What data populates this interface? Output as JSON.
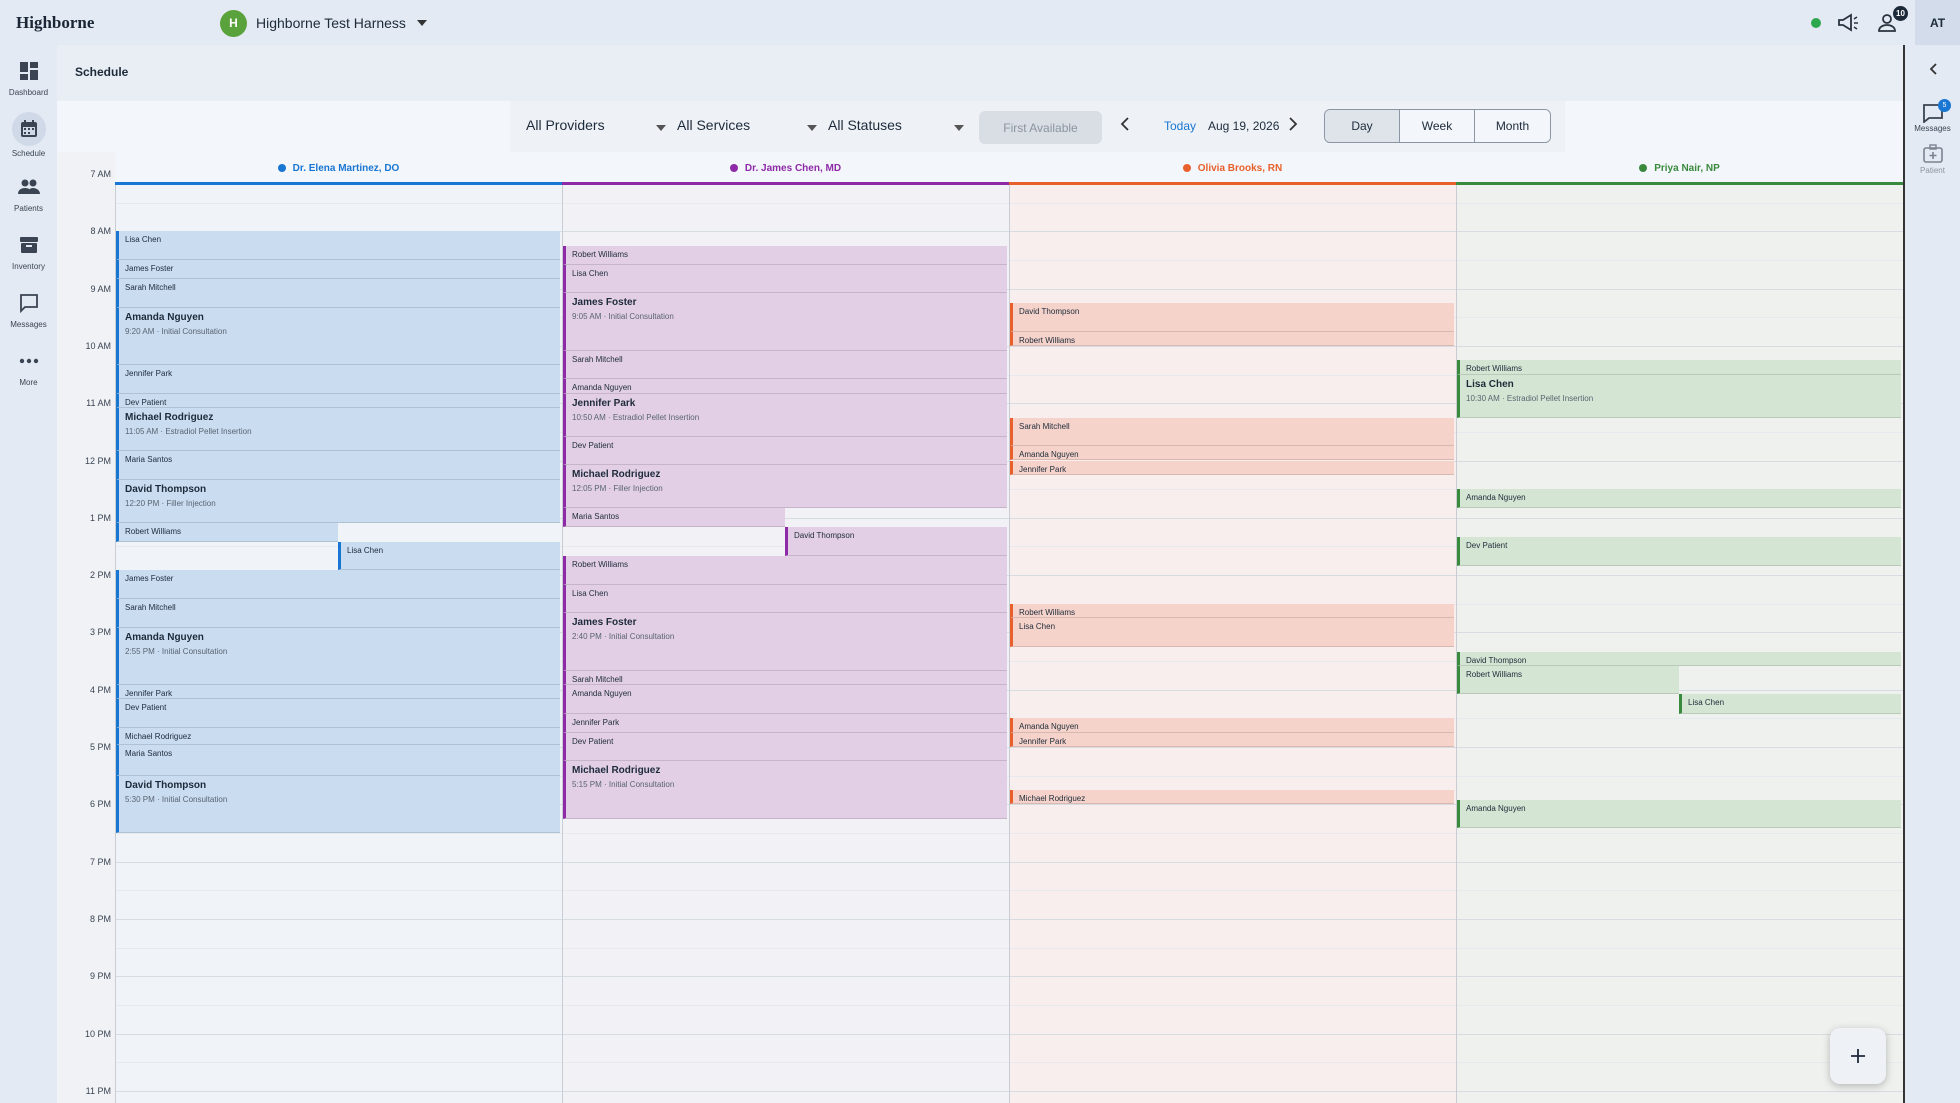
{
  "app": {
    "logo": "Highborne"
  },
  "org": {
    "initial": "H",
    "name": "Highborne Test Harness"
  },
  "topbar": {
    "notification_count": "10",
    "user_initials": "AT"
  },
  "nav": [
    {
      "label": "Dashboard",
      "icon": "dashboard-icon"
    },
    {
      "label": "Schedule",
      "icon": "calendar-icon"
    },
    {
      "label": "Patients",
      "icon": "people-icon"
    },
    {
      "label": "Inventory",
      "icon": "archive-icon"
    },
    {
      "label": "Messages",
      "icon": "chat-icon"
    },
    {
      "label": "More",
      "icon": "more-icon"
    }
  ],
  "rightpanel": {
    "messages_label": "Messages",
    "messages_count": "5",
    "patient_label": "Patient"
  },
  "page": {
    "title": "Schedule"
  },
  "filters": {
    "providers": "All Providers",
    "services": "All Services",
    "statuses": "All Statuses",
    "first_available": "First Available",
    "today": "Today",
    "date": "Aug 19, 2026",
    "views": [
      "Day",
      "Week",
      "Month"
    ],
    "active_view": "Day"
  },
  "hours": [
    "7 AM",
    "8 AM",
    "9 AM",
    "10 AM",
    "11 AM",
    "12 PM",
    "1 PM",
    "2 PM",
    "3 PM",
    "4 PM",
    "5 PM",
    "6 PM",
    "7 PM",
    "8 PM",
    "9 PM",
    "10 PM",
    "11 PM"
  ],
  "providers": [
    {
      "name": "Dr. Elena Martinez, DO",
      "color": "#1976d2",
      "fill": "#c9dcf0",
      "bg": "#f0f3f8",
      "appointments": [
        {
          "start": "8:00",
          "end": "8:30",
          "patient": "Lisa Chen"
        },
        {
          "start": "8:30",
          "end": "8:50",
          "patient": "James Foster"
        },
        {
          "start": "8:50",
          "end": "9:20",
          "patient": "Sarah Mitchell"
        },
        {
          "start": "9:20",
          "end": "10:20",
          "patient": "Amanda Nguyen",
          "detail": "9:20 AM · Initial Consultation"
        },
        {
          "start": "10:20",
          "end": "10:50",
          "patient": "Jennifer Park"
        },
        {
          "start": "10:50",
          "end": "11:05",
          "patient": "Dev Patient"
        },
        {
          "start": "11:05",
          "end": "11:50",
          "patient": "Michael Rodriguez",
          "detail": "11:05 AM · Estradiol Pellet Insertion"
        },
        {
          "start": "11:50",
          "end": "12:20",
          "patient": "Maria Santos"
        },
        {
          "start": "12:20",
          "end": "13:05",
          "patient": "David Thompson",
          "detail": "12:20 PM · Filler Injection"
        },
        {
          "start": "13:05",
          "end": "13:25",
          "patient": "Robert Williams",
          "half": "left"
        },
        {
          "start": "13:25",
          "end": "13:55",
          "patient": "Lisa Chen",
          "half": "right"
        },
        {
          "start": "13:55",
          "end": "14:25",
          "patient": "James Foster"
        },
        {
          "start": "14:25",
          "end": "14:55",
          "patient": "Sarah Mitchell"
        },
        {
          "start": "14:55",
          "end": "15:55",
          "patient": "Amanda Nguyen",
          "detail": "2:55 PM · Initial Consultation"
        },
        {
          "start": "15:55",
          "end": "16:10",
          "patient": "Jennifer Park"
        },
        {
          "start": "16:10",
          "end": "16:40",
          "patient": "Dev Patient"
        },
        {
          "start": "16:40",
          "end": "16:58",
          "patient": "Michael Rodriguez"
        },
        {
          "start": "16:58",
          "end": "17:30",
          "patient": "Maria Santos"
        },
        {
          "start": "17:30",
          "end": "18:30",
          "patient": "David Thompson",
          "detail": "5:30 PM · Initial Consultation"
        }
      ]
    },
    {
      "name": "Dr. James Chen, MD",
      "color": "#8e2aa8",
      "fill": "#e2cfe5",
      "bg": "#f2f1f6",
      "appointments": [
        {
          "start": "8:15",
          "end": "8:35",
          "patient": "Robert Williams"
        },
        {
          "start": "8:35",
          "end": "9:05",
          "patient": "Lisa Chen"
        },
        {
          "start": "9:05",
          "end": "10:05",
          "patient": "James Foster",
          "detail": "9:05 AM · Initial Consultation"
        },
        {
          "start": "10:05",
          "end": "10:35",
          "patient": "Sarah Mitchell"
        },
        {
          "start": "10:35",
          "end": "10:50",
          "patient": "Amanda Nguyen"
        },
        {
          "start": "10:50",
          "end": "11:35",
          "patient": "Jennifer Park",
          "detail": "10:50 AM · Estradiol Pellet Insertion"
        },
        {
          "start": "11:35",
          "end": "12:05",
          "patient": "Dev Patient"
        },
        {
          "start": "12:05",
          "end": "12:50",
          "patient": "Michael Rodriguez",
          "detail": "12:05 PM · Filler Injection"
        },
        {
          "start": "12:50",
          "end": "13:10",
          "patient": "Maria Santos",
          "half": "left"
        },
        {
          "start": "13:10",
          "end": "13:40",
          "patient": "David Thompson",
          "half": "right"
        },
        {
          "start": "13:40",
          "end": "14:10",
          "patient": "Robert Williams"
        },
        {
          "start": "14:10",
          "end": "14:40",
          "patient": "Lisa Chen"
        },
        {
          "start": "14:40",
          "end": "15:40",
          "patient": "James Foster",
          "detail": "2:40 PM · Initial Consultation"
        },
        {
          "start": "15:40",
          "end": "15:55",
          "patient": "Sarah Mitchell"
        },
        {
          "start": "15:55",
          "end": "16:25",
          "patient": "Amanda Nguyen"
        },
        {
          "start": "16:25",
          "end": "16:45",
          "patient": "Jennifer Park"
        },
        {
          "start": "16:45",
          "end": "17:15",
          "patient": "Dev Patient"
        },
        {
          "start": "17:15",
          "end": "18:15",
          "patient": "Michael Rodriguez",
          "detail": "5:15 PM · Initial Consultation"
        }
      ]
    },
    {
      "name": "Olivia Brooks, RN",
      "color": "#e8612c",
      "fill": "#f5d3ca",
      "bg": "#f8eeed",
      "appointments": [
        {
          "start": "9:15",
          "end": "9:45",
          "patient": "David Thompson"
        },
        {
          "start": "9:45",
          "end": "10:00",
          "patient": "Robert Williams"
        },
        {
          "start": "11:15",
          "end": "11:45",
          "patient": "Sarah Mitchell"
        },
        {
          "start": "11:45",
          "end": "12:00",
          "patient": "Amanda Nguyen"
        },
        {
          "start": "12:00",
          "end": "12:15",
          "patient": "Jennifer Park"
        },
        {
          "start": "14:30",
          "end": "14:45",
          "patient": "Robert Williams"
        },
        {
          "start": "14:45",
          "end": "15:15",
          "patient": "Lisa Chen"
        },
        {
          "start": "16:30",
          "end": "16:45",
          "patient": "Amanda Nguyen"
        },
        {
          "start": "16:45",
          "end": "17:00",
          "patient": "Jennifer Park"
        },
        {
          "start": "17:45",
          "end": "18:00",
          "patient": "Michael Rodriguez"
        }
      ]
    },
    {
      "name": "Priya Nair, NP",
      "color": "#3a8a3e",
      "fill": "#d4e6d3",
      "bg": "#eef1ee",
      "appointments": [
        {
          "start": "10:15",
          "end": "10:30",
          "patient": "Robert Williams"
        },
        {
          "start": "10:30",
          "end": "11:15",
          "patient": "Lisa Chen",
          "detail": "10:30 AM · Estradiol Pellet Insertion"
        },
        {
          "start": "12:30",
          "end": "12:50",
          "patient": "Amanda Nguyen"
        },
        {
          "start": "13:20",
          "end": "13:50",
          "patient": "Dev Patient"
        },
        {
          "start": "15:20",
          "end": "15:35",
          "patient": "David Thompson"
        },
        {
          "start": "15:35",
          "end": "16:05",
          "patient": "Robert Williams",
          "half": "left"
        },
        {
          "start": "16:05",
          "end": "16:25",
          "patient": "Lisa Chen",
          "half": "right"
        },
        {
          "start": "17:55",
          "end": "18:25",
          "patient": "Amanda Nguyen"
        }
      ]
    }
  ]
}
